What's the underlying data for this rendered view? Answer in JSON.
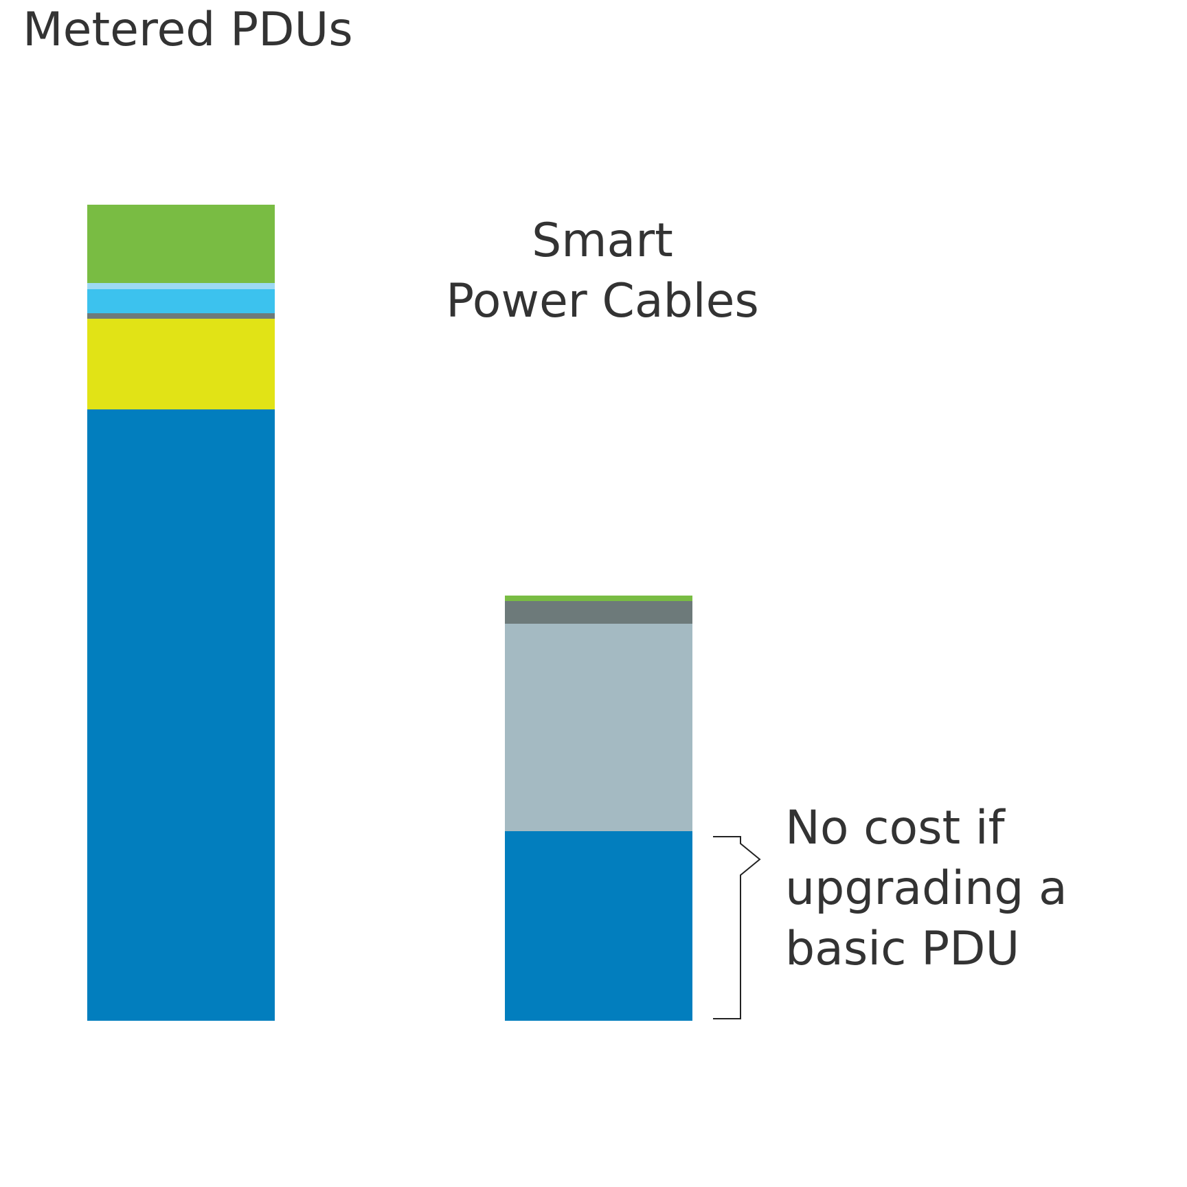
{
  "chart_data": {
    "type": "bar",
    "stacked": true,
    "categories": [
      "Metered PDUs",
      "Smart\nPower Cables"
    ],
    "category_labels": [
      [
        "Metered PDUs"
      ],
      [
        "Smart",
        "Power Cables"
      ]
    ],
    "stacks": [
      {
        "category": "Metered PDUs",
        "segments": [
          {
            "value": 890,
            "color": "#027EBE"
          },
          {
            "value": 132,
            "color": "#E1E316"
          },
          {
            "value": 8,
            "color": "#6D7A7A"
          },
          {
            "value": 35,
            "color": "#3CC2EE"
          },
          {
            "value": 9,
            "color": "#9DD9F3"
          },
          {
            "value": 114,
            "color": "#79BC43"
          }
        ]
      },
      {
        "category": "Smart\nPower Cables",
        "segments": [
          {
            "value": 276,
            "color": "#027EBE"
          },
          {
            "value": 302,
            "color": "#A4BAC2"
          },
          {
            "value": 33,
            "color": "#6D7A7A"
          },
          {
            "value": 8,
            "color": "#79BC43"
          }
        ]
      }
    ],
    "ylim": [
      0,
      1188
    ],
    "grid": false,
    "xlabel": "",
    "ylabel": "",
    "annotations": [
      {
        "target": "Smart\nPower Cables",
        "segment_index": 0,
        "type": "brace",
        "lines": [
          "No cost if",
          "upgrading a",
          "basic  PDU"
        ]
      }
    ]
  }
}
